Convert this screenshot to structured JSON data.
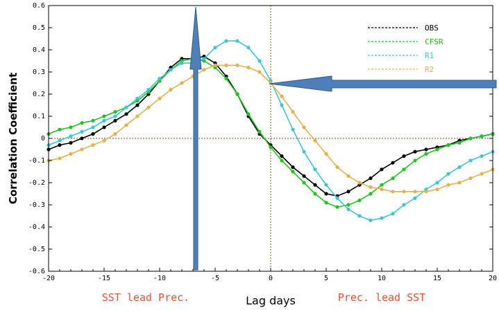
{
  "chart_data": {
    "type": "line",
    "xlabel": "Lag days",
    "ylabel": "Correlation Coefficient",
    "xlim": [
      -20,
      20
    ],
    "ylim": [
      -0.6,
      0.6
    ],
    "xticks": [
      "-20",
      "-15",
      "-10",
      "-5",
      "0",
      "5",
      "10",
      "15",
      "20"
    ],
    "yticks": [
      "0.6",
      "0.5",
      "0.4",
      "0.3",
      "0.2",
      "0.1",
      "0",
      "-0.1",
      "-0.2",
      "-0.3",
      "-0.4",
      "-0.5",
      "-0.6"
    ],
    "legend": "top-right",
    "annotations": {
      "left": "SST lead Prec.",
      "right": "Prec. lead SST",
      "annotation_color": "#e8503a"
    },
    "arrow_color": "#4f7fb8",
    "series": [
      {
        "name": "OBS",
        "color": "#000000",
        "x": [
          -20,
          -19,
          -18,
          -17,
          -16,
          -15,
          -14,
          -13,
          -12,
          -11,
          -10,
          -9,
          -8,
          -7,
          -6,
          -5,
          -4,
          -3,
          -2,
          -1,
          0,
          1,
          2,
          3,
          4,
          5,
          6,
          7,
          8,
          9,
          10,
          11,
          12,
          13,
          14,
          15,
          16,
          17,
          18,
          19,
          20
        ],
        "y": [
          -0.05,
          -0.03,
          -0.02,
          0.0,
          0.02,
          0.05,
          0.08,
          0.11,
          0.15,
          0.2,
          0.26,
          0.32,
          0.36,
          0.36,
          0.37,
          0.34,
          0.28,
          0.2,
          0.1,
          0.02,
          -0.03,
          -0.08,
          -0.13,
          -0.17,
          -0.21,
          -0.25,
          -0.26,
          -0.24,
          -0.21,
          -0.18,
          -0.14,
          -0.11,
          -0.08,
          -0.06,
          -0.05,
          -0.04,
          -0.03,
          -0.01,
          0.0,
          0.01,
          0.02
        ]
      },
      {
        "name": "CFSR",
        "color": "#1fc41f",
        "x": [
          -20,
          -19,
          -18,
          -17,
          -16,
          -15,
          -14,
          -13,
          -12,
          -11,
          -10,
          -9,
          -8,
          -7,
          -6,
          -5,
          -4,
          -3,
          -2,
          -1,
          0,
          1,
          2,
          3,
          4,
          5,
          6,
          7,
          8,
          9,
          10,
          11,
          12,
          13,
          14,
          15,
          16,
          17,
          18,
          19,
          20
        ],
        "y": [
          0.02,
          0.04,
          0.05,
          0.07,
          0.08,
          0.1,
          0.12,
          0.14,
          0.17,
          0.21,
          0.26,
          0.31,
          0.35,
          0.36,
          0.35,
          0.32,
          0.27,
          0.2,
          0.11,
          0.03,
          -0.04,
          -0.1,
          -0.15,
          -0.2,
          -0.25,
          -0.29,
          -0.31,
          -0.3,
          -0.28,
          -0.25,
          -0.21,
          -0.18,
          -0.14,
          -0.1,
          -0.07,
          -0.05,
          -0.03,
          -0.02,
          0.0,
          0.01,
          0.02
        ]
      },
      {
        "name": "R1",
        "color": "#3fc3d8",
        "x": [
          -20,
          -19,
          -18,
          -17,
          -16,
          -15,
          -14,
          -13,
          -12,
          -11,
          -10,
          -9,
          -8,
          -7,
          -6,
          -5,
          -4,
          -3,
          -2,
          -1,
          0,
          1,
          2,
          3,
          4,
          5,
          6,
          7,
          8,
          9,
          10,
          11,
          12,
          13,
          14,
          15,
          16,
          17,
          18,
          19,
          20
        ],
        "y": [
          -0.03,
          -0.01,
          0.01,
          0.03,
          0.05,
          0.08,
          0.1,
          0.14,
          0.18,
          0.22,
          0.27,
          0.31,
          0.34,
          0.34,
          0.36,
          0.41,
          0.44,
          0.44,
          0.41,
          0.35,
          0.26,
          0.15,
          0.04,
          -0.06,
          -0.14,
          -0.21,
          -0.27,
          -0.32,
          -0.35,
          -0.37,
          -0.36,
          -0.34,
          -0.3,
          -0.27,
          -0.23,
          -0.2,
          -0.16,
          -0.13,
          -0.1,
          -0.08,
          -0.06
        ]
      },
      {
        "name": "R2",
        "color": "#e8b04a",
        "x": [
          -20,
          -19,
          -18,
          -17,
          -16,
          -15,
          -14,
          -13,
          -12,
          -11,
          -10,
          -9,
          -8,
          -7,
          -6,
          -5,
          -4,
          -3,
          -2,
          -1,
          0,
          1,
          2,
          3,
          4,
          5,
          6,
          7,
          8,
          9,
          10,
          11,
          12,
          13,
          14,
          15,
          16,
          17,
          18,
          19,
          20
        ],
        "y": [
          -0.1,
          -0.09,
          -0.07,
          -0.05,
          -0.03,
          -0.01,
          0.02,
          0.06,
          0.1,
          0.14,
          0.18,
          0.22,
          0.25,
          0.28,
          0.31,
          0.33,
          0.33,
          0.33,
          0.32,
          0.3,
          0.25,
          0.19,
          0.12,
          0.05,
          -0.01,
          -0.07,
          -0.13,
          -0.17,
          -0.2,
          -0.22,
          -0.23,
          -0.24,
          -0.24,
          -0.24,
          -0.24,
          -0.23,
          -0.21,
          -0.2,
          -0.18,
          -0.16,
          -0.14
        ]
      }
    ]
  }
}
